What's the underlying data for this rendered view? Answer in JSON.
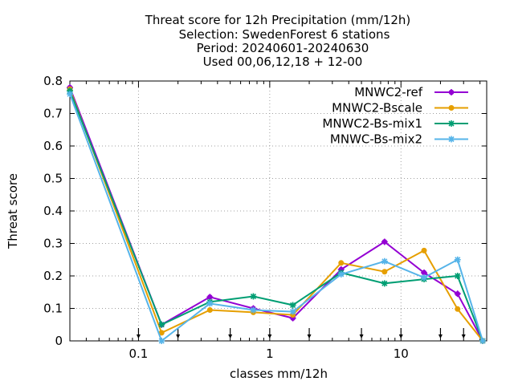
{
  "chart_data": {
    "type": "line",
    "title_lines": [
      "Threat score  for 12h Precipitation (mm/12h)",
      "Selection: SwedenForest      6 stations",
      "Period: 20240601-20240630",
      "Used 00,06,12,18 + 12-00"
    ],
    "xlabel": "classes mm/12h",
    "ylabel": "Threat score",
    "x_scale": "log",
    "xlim": [
      0.03,
      45
    ],
    "ylim": [
      0,
      0.8
    ],
    "x_ticks": [
      0.1,
      1,
      10
    ],
    "x_tick_labels": [
      "0.1",
      "1",
      "10"
    ],
    "y_ticks": [
      0,
      0.1,
      0.2,
      0.3,
      0.4,
      0.5,
      0.6,
      0.7,
      0.8
    ],
    "y_tick_labels": [
      "0",
      "0.1",
      "0.2",
      "0.3",
      "0.4",
      "0.5",
      "0.6",
      "0.7",
      "0.8"
    ],
    "grid": true,
    "legend_position": "top-right",
    "class_arrows_x": [
      0.1,
      0.2,
      0.5,
      1,
      2,
      5,
      10,
      20,
      30
    ],
    "series": [
      {
        "name": "MNWC2-ref",
        "color": "#9400d3",
        "marker": "plus-circle",
        "x": [
          0.03,
          0.15,
          0.35,
          0.75,
          1.5,
          3.5,
          7.5,
          15,
          27,
          42
        ],
        "y": [
          0.78,
          0.05,
          0.135,
          0.1,
          0.07,
          0.22,
          0.305,
          0.21,
          0.145,
          0.0
        ]
      },
      {
        "name": "MNWC2-Bscale",
        "color": "#e69f00",
        "marker": "circle",
        "x": [
          0.03,
          0.15,
          0.35,
          0.75,
          1.5,
          3.5,
          7.5,
          15,
          27,
          42
        ],
        "y": [
          0.775,
          0.025,
          0.095,
          0.088,
          0.08,
          0.24,
          0.213,
          0.278,
          0.098,
          0.0
        ]
      },
      {
        "name": "MNWC2-Bs-mix1",
        "color": "#009e73",
        "marker": "star",
        "x": [
          0.03,
          0.15,
          0.35,
          0.75,
          1.5,
          3.5,
          7.5,
          15,
          27,
          42
        ],
        "y": [
          0.77,
          0.05,
          0.12,
          0.137,
          0.11,
          0.21,
          0.177,
          0.19,
          0.2,
          0.0
        ]
      },
      {
        "name": "MNWC-Bs-mix2",
        "color": "#56b4e9",
        "marker": "star",
        "x": [
          0.03,
          0.15,
          0.35,
          0.75,
          1.5,
          3.5,
          7.5,
          15,
          27,
          42
        ],
        "y": [
          0.76,
          0.0,
          0.115,
          0.095,
          0.09,
          0.205,
          0.245,
          0.195,
          0.25,
          0.0
        ]
      }
    ]
  }
}
